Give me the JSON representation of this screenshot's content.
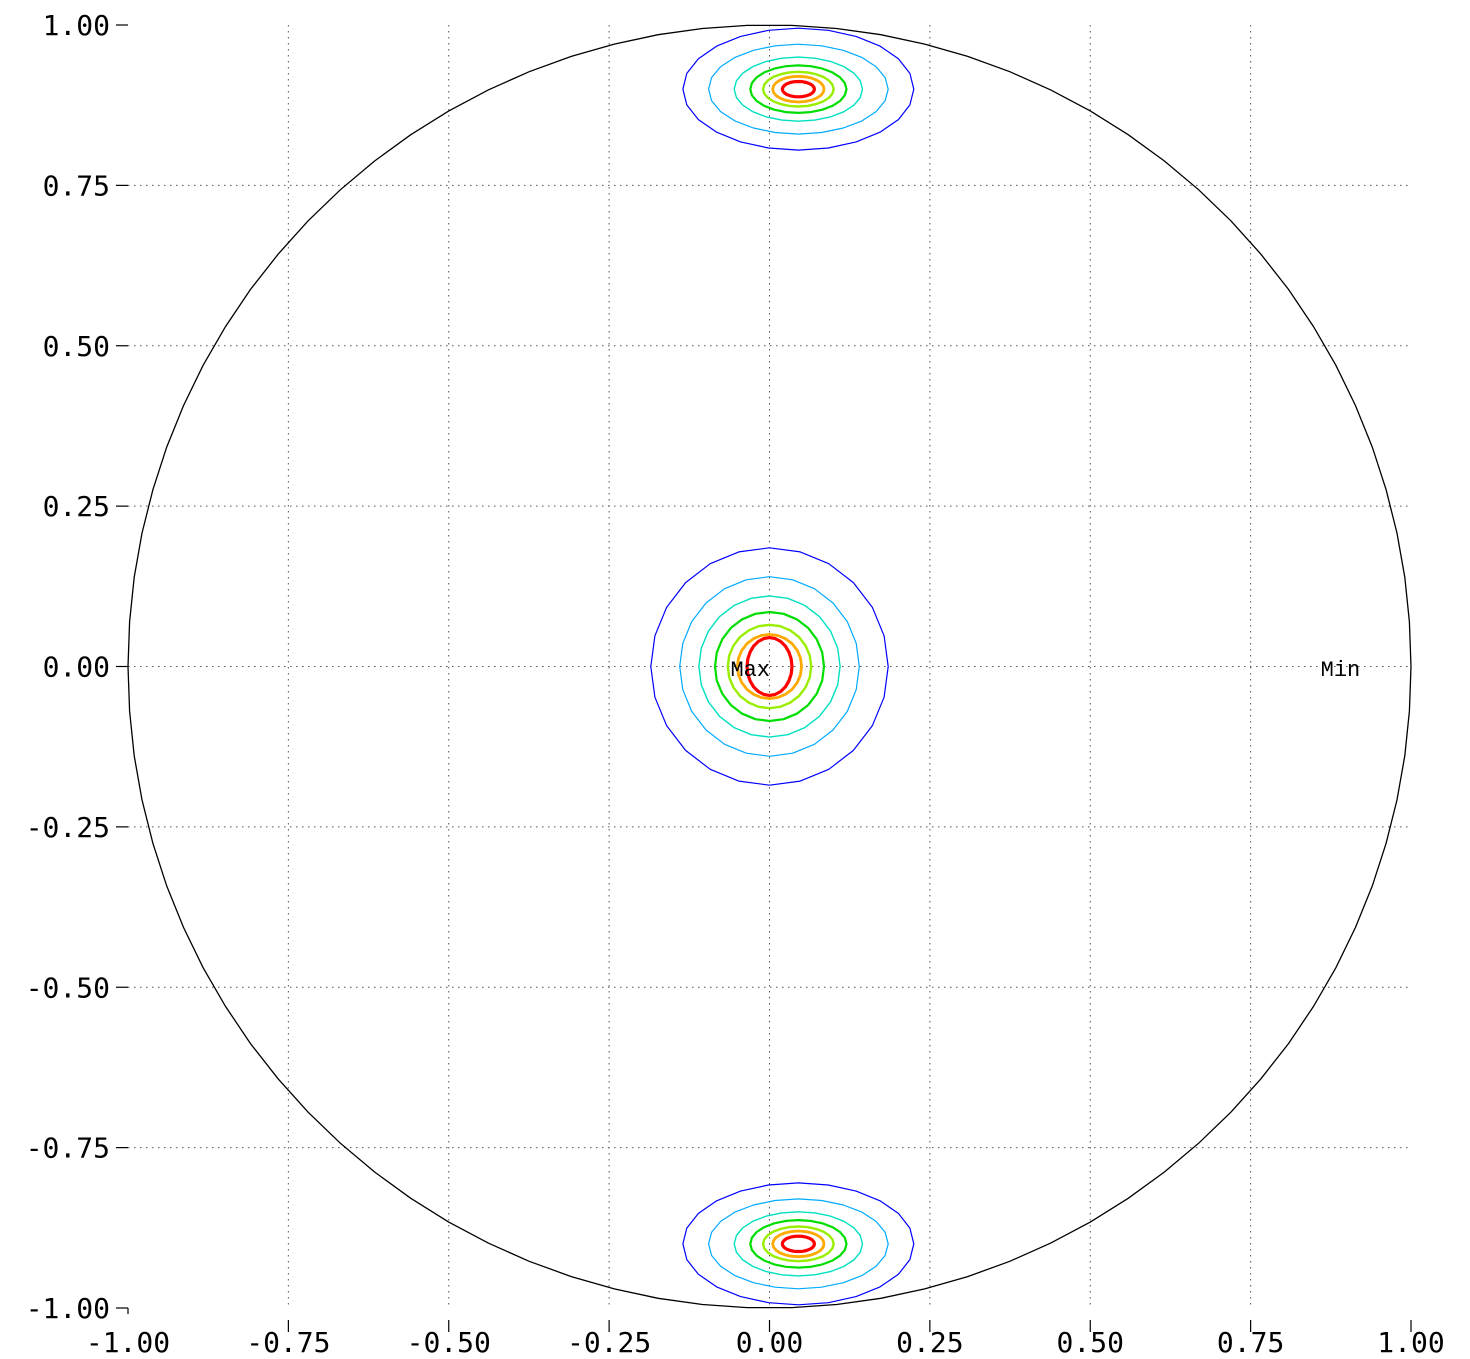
{
  "chart_data": {
    "type": "contour",
    "title": "",
    "xlabel": "",
    "ylabel": "",
    "xlim": [
      -1.0,
      1.0
    ],
    "ylim": [
      -1.0,
      1.0
    ],
    "grid": true,
    "x_ticks": [
      "-1.00",
      "-0.75",
      "-0.50",
      "-0.25",
      "0.00",
      "0.25",
      "0.50",
      "0.75",
      "1.00"
    ],
    "y_ticks": [
      "1.00",
      "0.75",
      "0.50",
      "0.25",
      "0.00",
      "-0.25",
      "-0.50",
      "-0.75",
      "-1.00"
    ],
    "boundary": {
      "shape": "circle",
      "center": [
        0,
        0
      ],
      "radius": 1.0
    },
    "contour_colors": [
      "#0000ff",
      "#00aaff",
      "#00e0c0",
      "#00dd00",
      "#99ee00",
      "#ffaa00",
      "#ff0000"
    ],
    "peaks": [
      {
        "center": [
          0.0,
          0.0
        ],
        "levels": [
          [
            0.185,
            0.185
          ],
          [
            0.14,
            0.14
          ],
          [
            0.11,
            0.11
          ],
          [
            0.085,
            0.085
          ],
          [
            0.065,
            0.065
          ],
          [
            0.05,
            0.05
          ],
          [
            0.035,
            0.045
          ]
        ]
      },
      {
        "center": [
          0.045,
          0.9
        ],
        "levels": [
          [
            0.18,
            0.095
          ],
          [
            0.14,
            0.07
          ],
          [
            0.1,
            0.05
          ],
          [
            0.075,
            0.037
          ],
          [
            0.055,
            0.027
          ],
          [
            0.04,
            0.02
          ],
          [
            0.025,
            0.012
          ]
        ]
      },
      {
        "center": [
          0.045,
          -0.9
        ],
        "levels": [
          [
            0.18,
            0.095
          ],
          [
            0.14,
            0.07
          ],
          [
            0.1,
            0.05
          ],
          [
            0.075,
            0.037
          ],
          [
            0.055,
            0.027
          ],
          [
            0.04,
            0.02
          ],
          [
            0.025,
            0.012
          ]
        ]
      }
    ],
    "annotations": [
      {
        "text": "Max",
        "x": -0.03,
        "y": -0.002
      },
      {
        "text": "Min",
        "x": 0.89,
        "y": -0.002
      }
    ]
  }
}
